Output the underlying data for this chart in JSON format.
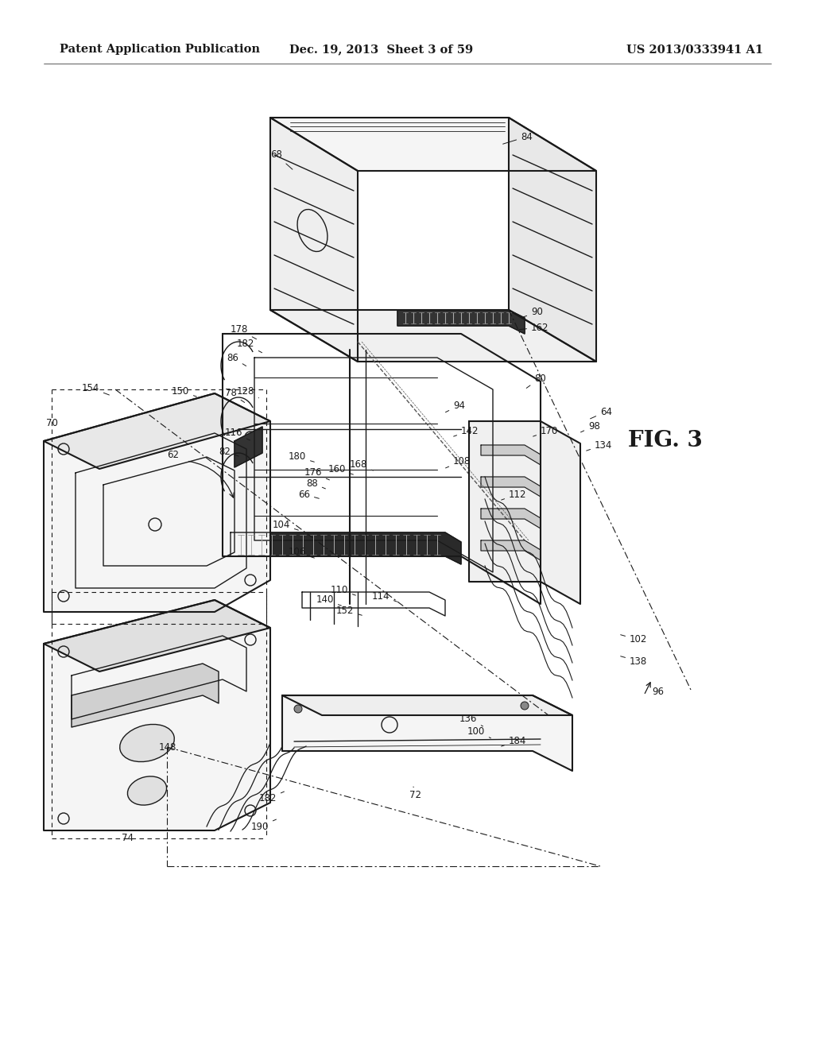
{
  "header_left": "Patent Application Publication",
  "header_center": "Dec. 19, 2013  Sheet 3 of 59",
  "header_right": "US 2013/0333941 A1",
  "figure_label": "FIG. 3",
  "bg_color": "#ffffff",
  "line_color": "#1a1a1a",
  "label_color": "#1a1a1a",
  "header_fontsize": 10.5,
  "label_fontsize": 8.5,
  "fig_label_fontsize": 20
}
